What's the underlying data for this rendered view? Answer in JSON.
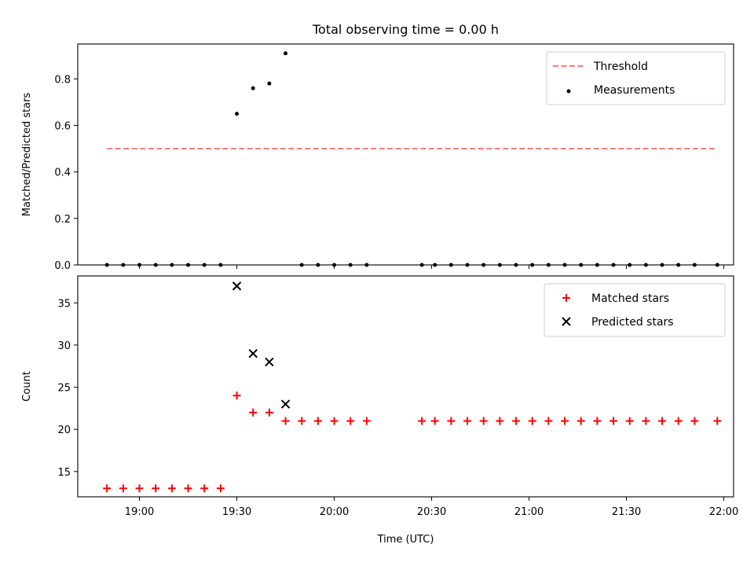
{
  "chart_data": [
    {
      "type": "scatter",
      "title": "Total observing time = 0.00 h",
      "xlabel": "",
      "ylabel": "Matched/Predicted stars",
      "ylim": [
        0,
        0.95
      ],
      "x_domain": [
        "18:41",
        "22:03"
      ],
      "yticks": [
        {
          "v": 0.0,
          "label": "0.0"
        },
        {
          "v": 0.2,
          "label": "0.2"
        },
        {
          "v": 0.4,
          "label": "0.4"
        },
        {
          "v": 0.6,
          "label": "0.6"
        },
        {
          "v": 0.8,
          "label": "0.8"
        }
      ],
      "threshold": {
        "name": "Threshold",
        "value": 0.5,
        "x_range": [
          "18:50",
          "21:58"
        ],
        "color": "#ff7777"
      },
      "series": [
        {
          "name": "Measurements",
          "color": "#000000",
          "points": [
            {
              "x": "18:50",
              "y": 0
            },
            {
              "x": "18:55",
              "y": 0
            },
            {
              "x": "19:00",
              "y": 0
            },
            {
              "x": "19:05",
              "y": 0
            },
            {
              "x": "19:10",
              "y": 0
            },
            {
              "x": "19:15",
              "y": 0
            },
            {
              "x": "19:20",
              "y": 0
            },
            {
              "x": "19:25",
              "y": 0
            },
            {
              "x": "19:30",
              "y": 0.65
            },
            {
              "x": "19:35",
              "y": 0.76
            },
            {
              "x": "19:40",
              "y": 0.78
            },
            {
              "x": "19:45",
              "y": 0.91
            },
            {
              "x": "19:50",
              "y": 0
            },
            {
              "x": "19:55",
              "y": 0
            },
            {
              "x": "20:00",
              "y": 0
            },
            {
              "x": "20:05",
              "y": 0
            },
            {
              "x": "20:10",
              "y": 0
            },
            {
              "x": "20:27",
              "y": 0
            },
            {
              "x": "20:31",
              "y": 0
            },
            {
              "x": "20:36",
              "y": 0
            },
            {
              "x": "20:41",
              "y": 0
            },
            {
              "x": "20:46",
              "y": 0
            },
            {
              "x": "20:51",
              "y": 0
            },
            {
              "x": "20:56",
              "y": 0
            },
            {
              "x": "21:01",
              "y": 0
            },
            {
              "x": "21:06",
              "y": 0
            },
            {
              "x": "21:11",
              "y": 0
            },
            {
              "x": "21:16",
              "y": 0
            },
            {
              "x": "21:21",
              "y": 0
            },
            {
              "x": "21:26",
              "y": 0
            },
            {
              "x": "21:31",
              "y": 0
            },
            {
              "x": "21:36",
              "y": 0
            },
            {
              "x": "21:41",
              "y": 0
            },
            {
              "x": "21:46",
              "y": 0
            },
            {
              "x": "21:51",
              "y": 0
            },
            {
              "x": "21:58",
              "y": 0
            }
          ]
        }
      ],
      "legend": {
        "position": "top-right",
        "entries": [
          "Threshold",
          "Measurements"
        ]
      }
    },
    {
      "type": "scatter",
      "title": "",
      "xlabel": "Time (UTC)",
      "ylabel": "Count",
      "ylim": [
        12,
        38.2
      ],
      "x_domain": [
        "18:41",
        "22:03"
      ],
      "xticks": [
        "19:00",
        "19:30",
        "20:00",
        "20:30",
        "21:00",
        "21:30",
        "22:00"
      ],
      "yticks": [
        {
          "v": 15,
          "label": "15"
        },
        {
          "v": 20,
          "label": "20"
        },
        {
          "v": 25,
          "label": "25"
        },
        {
          "v": 30,
          "label": "30"
        },
        {
          "v": 35,
          "label": "35"
        }
      ],
      "series": [
        {
          "name": "Matched stars",
          "marker": "plus",
          "color": "#ff0000",
          "points": [
            {
              "x": "18:50",
              "y": 13
            },
            {
              "x": "18:55",
              "y": 13
            },
            {
              "x": "19:00",
              "y": 13
            },
            {
              "x": "19:05",
              "y": 13
            },
            {
              "x": "19:10",
              "y": 13
            },
            {
              "x": "19:15",
              "y": 13
            },
            {
              "x": "19:20",
              "y": 13
            },
            {
              "x": "19:25",
              "y": 13
            },
            {
              "x": "19:30",
              "y": 24
            },
            {
              "x": "19:35",
              "y": 22
            },
            {
              "x": "19:40",
              "y": 22
            },
            {
              "x": "19:45",
              "y": 21
            },
            {
              "x": "19:50",
              "y": 21
            },
            {
              "x": "19:55",
              "y": 21
            },
            {
              "x": "20:00",
              "y": 21
            },
            {
              "x": "20:05",
              "y": 21
            },
            {
              "x": "20:10",
              "y": 21
            },
            {
              "x": "20:27",
              "y": 21
            },
            {
              "x": "20:31",
              "y": 21
            },
            {
              "x": "20:36",
              "y": 21
            },
            {
              "x": "20:41",
              "y": 21
            },
            {
              "x": "20:46",
              "y": 21
            },
            {
              "x": "20:51",
              "y": 21
            },
            {
              "x": "20:56",
              "y": 21
            },
            {
              "x": "21:01",
              "y": 21
            },
            {
              "x": "21:06",
              "y": 21
            },
            {
              "x": "21:11",
              "y": 21
            },
            {
              "x": "21:16",
              "y": 21
            },
            {
              "x": "21:21",
              "y": 21
            },
            {
              "x": "21:26",
              "y": 21
            },
            {
              "x": "21:31",
              "y": 21
            },
            {
              "x": "21:36",
              "y": 21
            },
            {
              "x": "21:41",
              "y": 21
            },
            {
              "x": "21:46",
              "y": 21
            },
            {
              "x": "21:51",
              "y": 21
            },
            {
              "x": "21:58",
              "y": 21
            }
          ]
        },
        {
          "name": "Predicted stars",
          "marker": "x",
          "color": "#000000",
          "points": [
            {
              "x": "19:30",
              "y": 37
            },
            {
              "x": "19:35",
              "y": 29
            },
            {
              "x": "19:40",
              "y": 28
            },
            {
              "x": "19:45",
              "y": 23
            }
          ]
        }
      ],
      "legend": {
        "position": "top-right",
        "entries": [
          "Matched stars",
          "Predicted stars"
        ]
      }
    }
  ]
}
